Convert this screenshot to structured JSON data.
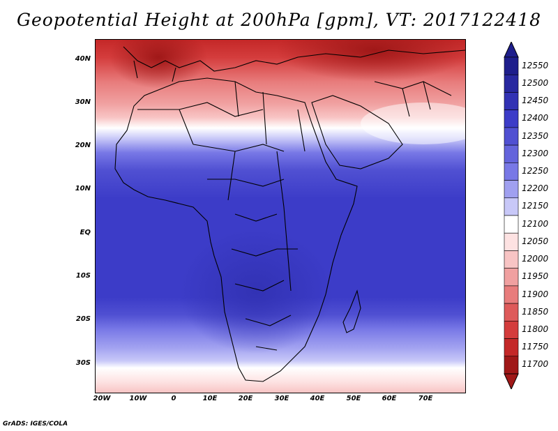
{
  "title": "Geopotential Height at 200hPa [gpm], VT: 2017122418",
  "credit": "GrADS: IGES/COLA",
  "map": {
    "lat_labels": [
      "40N",
      "30N",
      "20N",
      "10N",
      "EQ",
      "10S",
      "20S",
      "30S"
    ],
    "lon_labels": [
      "20W",
      "10W",
      "0",
      "10E",
      "20E",
      "30E",
      "40E",
      "50E",
      "60E",
      "70E"
    ]
  },
  "legend": {
    "levels": [
      "12550",
      "12500",
      "12450",
      "12400",
      "12350",
      "12300",
      "12250",
      "12200",
      "12150",
      "12100",
      "12050",
      "12000",
      "11950",
      "11900",
      "11850",
      "11800",
      "11750",
      "11700"
    ],
    "colors": [
      "#1e1e8c",
      "#2828a0",
      "#3232b4",
      "#3c3cc8",
      "#5050d2",
      "#6464dc",
      "#7878e6",
      "#a0a0f0",
      "#c8c8f8",
      "#ffffff",
      "#fde2e2",
      "#f8c4c4",
      "#f0a0a0",
      "#e87c7c",
      "#de5a5a",
      "#d43c3c",
      "#c42828",
      "#a01818"
    ]
  }
}
